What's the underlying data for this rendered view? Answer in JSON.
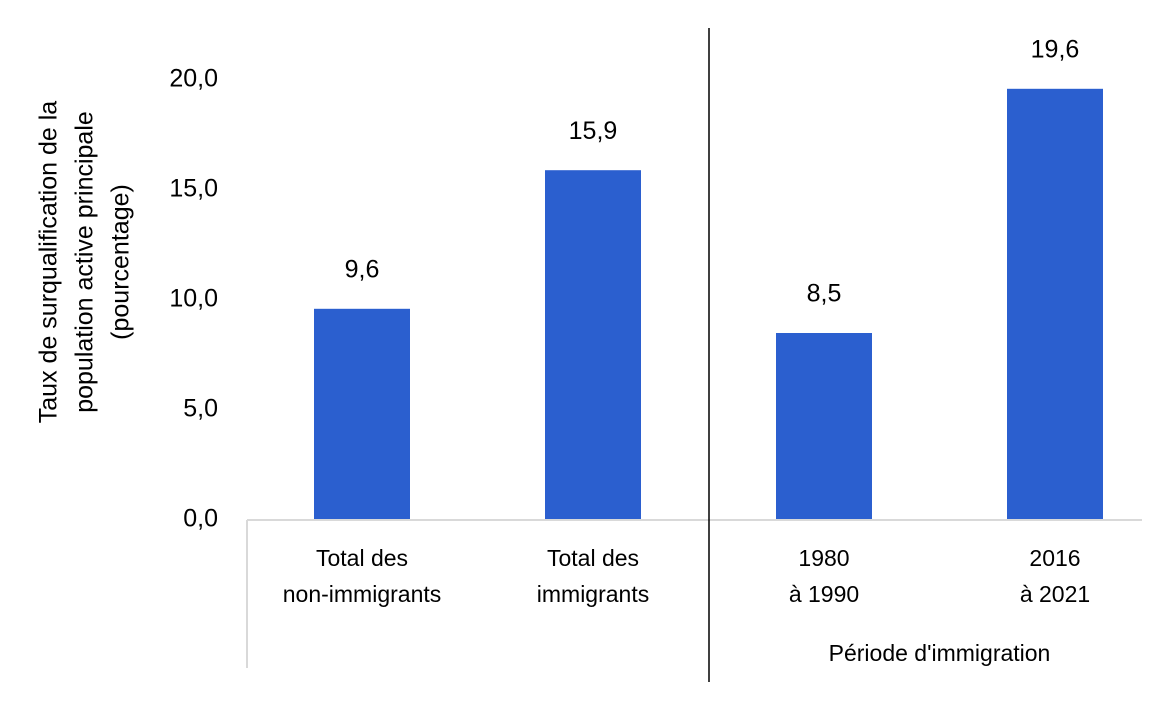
{
  "chart_data": {
    "type": "bar",
    "ylabel_lines": [
      "Taux de surqualification de la",
      "population active principale",
      "(pourcentage)"
    ],
    "xlabel": "",
    "ylim": [
      0,
      20
    ],
    "yticks": [
      0,
      5,
      10,
      15,
      20
    ],
    "ytick_labels": [
      "0,0",
      "5,0",
      "10,0",
      "15,0",
      "20,0"
    ],
    "categories": [
      {
        "lines": [
          "Total des",
          "non-immigrants"
        ]
      },
      {
        "lines": [
          "Total des",
          "immigrants"
        ]
      },
      {
        "lines": [
          "1980",
          "à 1990"
        ]
      },
      {
        "lines": [
          "2016",
          "à 2021"
        ]
      }
    ],
    "values": [
      9.6,
      15.9,
      8.5,
      19.6
    ],
    "value_labels": [
      "9,6",
      "15,9",
      "8,5",
      "19,6"
    ],
    "group_label": "Période d'immigration",
    "group_categories": [
      2,
      3
    ],
    "grid": false,
    "legend": "none",
    "bar_color": "#2b5fcf",
    "axis_color": "#d9d9d9",
    "divider_color": "#000000"
  }
}
